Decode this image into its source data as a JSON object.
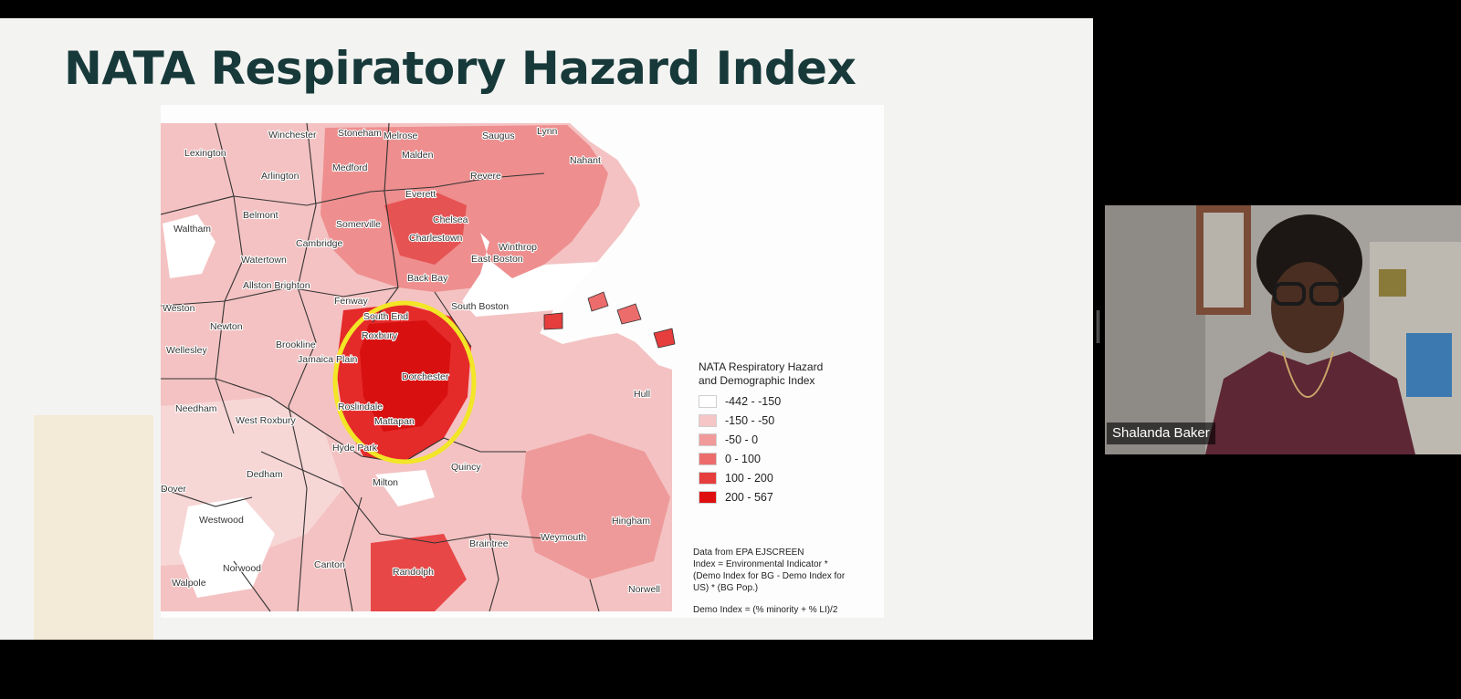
{
  "slide": {
    "title": "NATA Respiratory Hazard Index"
  },
  "map": {
    "places": [
      {
        "name": "Winchester"
      },
      {
        "name": "Stoneham"
      },
      {
        "name": "Melrose"
      },
      {
        "name": "Saugus"
      },
      {
        "name": "Lynn"
      },
      {
        "name": "Lexington"
      },
      {
        "name": "Malden"
      },
      {
        "name": "Nahant"
      },
      {
        "name": "Medford"
      },
      {
        "name": "Arlington"
      },
      {
        "name": "Revere"
      },
      {
        "name": "Everett"
      },
      {
        "name": "Belmont"
      },
      {
        "name": "Chelsea"
      },
      {
        "name": "Somerville"
      },
      {
        "name": "Waltham"
      },
      {
        "name": "Cambridge"
      },
      {
        "name": "Charlestown"
      },
      {
        "name": "Winthrop"
      },
      {
        "name": "Watertown"
      },
      {
        "name": "East Boston"
      },
      {
        "name": "Allston Brighton"
      },
      {
        "name": "Back Bay"
      },
      {
        "name": "Fenway"
      },
      {
        "name": "Weston"
      },
      {
        "name": "South Boston"
      },
      {
        "name": "South End"
      },
      {
        "name": "Newton"
      },
      {
        "name": "Roxbury"
      },
      {
        "name": "Brookline"
      },
      {
        "name": "Jamaica Plain"
      },
      {
        "name": "Wellesley"
      },
      {
        "name": "Dorchester"
      },
      {
        "name": "Hull"
      },
      {
        "name": "Needham"
      },
      {
        "name": "Roslindale"
      },
      {
        "name": "West Roxbury"
      },
      {
        "name": "Mattapan"
      },
      {
        "name": "Hyde Park"
      },
      {
        "name": "Quincy"
      },
      {
        "name": "Dedham"
      },
      {
        "name": "Milton"
      },
      {
        "name": "Dover"
      },
      {
        "name": "Westwood"
      },
      {
        "name": "Hingham"
      },
      {
        "name": "Braintree"
      },
      {
        "name": "Weymouth"
      },
      {
        "name": "Canton"
      },
      {
        "name": "Norwood"
      },
      {
        "name": "Randolph"
      },
      {
        "name": "Walpole"
      },
      {
        "name": "Norwell"
      }
    ],
    "legend": {
      "title_line1": "NATA Respiratory Hazard",
      "title_line2": "and Demographic Index",
      "items": [
        {
          "label": "-442 - -150",
          "color": "#ffffff"
        },
        {
          "label": "-150 - -50",
          "color": "#f6c6c6"
        },
        {
          "label": "-50 - 0",
          "color": "#f19a9a"
        },
        {
          "label": "0 - 100",
          "color": "#ec6c6c"
        },
        {
          "label": "100 - 200",
          "color": "#e63d3d"
        },
        {
          "label": "200 - 567",
          "color": "#e00f0f"
        }
      ]
    },
    "notes": {
      "line1": "Data from EPA EJSCREEN",
      "line2": "Index = Environmental Indicator *",
      "line3": "(Demo Index for BG - Demo Index for",
      "line4": "US) * (BG Pop.)",
      "line5": "Demo Index = (% minority + % LI)/2"
    },
    "highlight_color": "#f2e626"
  },
  "participant": {
    "name": "Shalanda Baker"
  }
}
